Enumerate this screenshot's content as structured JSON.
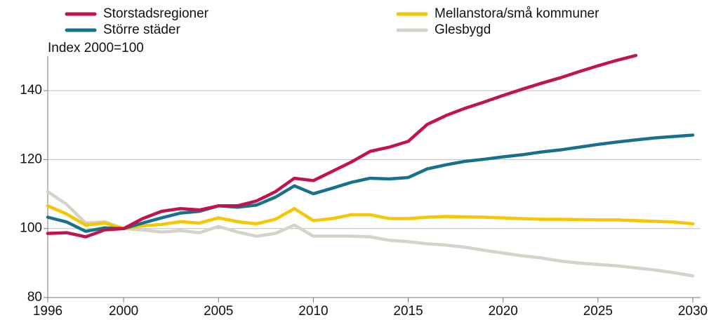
{
  "chart_data": {
    "type": "line",
    "ylabel": "Index 2000=100",
    "x": [
      1996,
      1997,
      1998,
      1999,
      2000,
      2001,
      2002,
      2003,
      2004,
      2005,
      2006,
      2007,
      2008,
      2009,
      2010,
      2011,
      2012,
      2013,
      2014,
      2015,
      2016,
      2017,
      2018,
      2019,
      2020,
      2021,
      2022,
      2023,
      2024,
      2025,
      2026,
      2027,
      2028,
      2029,
      2030
    ],
    "series": [
      {
        "name": "Storstadsregioner",
        "color": "#c2134e",
        "values": [
          98.6,
          98.8,
          97.6,
          99.6,
          100,
          102.9,
          105,
          105.8,
          105.4,
          106.6,
          106.6,
          108,
          110.7,
          114.6,
          113.9,
          116.6,
          119.3,
          122.4,
          123.6,
          125.3,
          130.2,
          132.8,
          134.9,
          136.7,
          138.6,
          140.4,
          142.1,
          143.7,
          145.5,
          147.2,
          148.8,
          150.2,
          null,
          null,
          null
        ]
      },
      {
        "name": "Större städer",
        "color": "#17708c",
        "values": [
          103.3,
          101.9,
          99.2,
          100.2,
          100,
          101.6,
          103.1,
          104.5,
          105,
          106.6,
          106.2,
          106.8,
          109.1,
          112.4,
          110.1,
          111.7,
          113.4,
          114.6,
          114.4,
          114.8,
          117.3,
          118.5,
          119.5,
          120.1,
          120.8,
          121.4,
          122.2,
          122.8,
          123.6,
          124.4,
          125.1,
          125.7,
          126.3,
          126.7,
          127.1
        ]
      },
      {
        "name": "Mellanstora/små kommuner",
        "color": "#f6c600",
        "values": [
          106.6,
          104.2,
          101,
          101.6,
          100,
          100.8,
          101.2,
          102,
          101.6,
          103.1,
          102,
          101.4,
          102.7,
          105.8,
          102.3,
          102.9,
          104,
          104,
          102.9,
          102.9,
          103.3,
          103.5,
          103.4,
          103.3,
          103.1,
          102.9,
          102.7,
          102.7,
          102.6,
          102.5,
          102.5,
          102.3,
          102.1,
          101.9,
          101.4
        ]
      },
      {
        "name": "Glesbygd",
        "color": "#d6d2ca",
        "values": [
          110.7,
          107,
          101.6,
          102,
          100,
          99.6,
          99,
          99.4,
          98.8,
          100.6,
          99,
          97.8,
          98.6,
          101,
          97.8,
          97.8,
          97.8,
          97.6,
          96.6,
          96.2,
          95.6,
          95.2,
          94.6,
          93.7,
          92.9,
          92.1,
          91.5,
          90.6,
          90,
          89.6,
          89.2,
          88.6,
          88,
          87.2,
          86.3
        ]
      }
    ],
    "xlim": [
      1996,
      2030
    ],
    "xticks": [
      1996,
      2000,
      2005,
      2010,
      2015,
      2020,
      2025,
      2030
    ],
    "ylim": [
      80,
      150
    ],
    "yticks": [
      80,
      100,
      120,
      140
    ],
    "grid": true
  }
}
